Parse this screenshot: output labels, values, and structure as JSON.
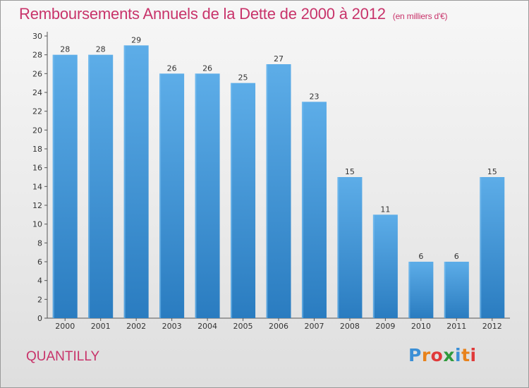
{
  "header": {
    "title": "Remboursements Annuels de la Dette de 2000 à 2012",
    "subtitle": "(en milliers d'€)"
  },
  "footer": {
    "commune": "QUANTILLY",
    "logo": {
      "letters": [
        "P",
        "r",
        "o",
        "x",
        "i",
        "t",
        "i"
      ],
      "colors": [
        "#3b8fd6",
        "#e8821c",
        "#e03a3a",
        "#2f9a3c",
        "#3b8fd6",
        "#e8821c",
        "#e03a3a"
      ]
    }
  },
  "colors": {
    "bar_light": "#5dade8",
    "bar_dark": "#2a7cc0",
    "axis": "#555555",
    "title": "#c8336a"
  },
  "chart_data": {
    "type": "bar",
    "title": "Remboursements Annuels de la Dette de 2000 à 2012",
    "subtitle": "(en milliers d'€)",
    "categories": [
      "2000",
      "2001",
      "2002",
      "2003",
      "2004",
      "2005",
      "2006",
      "2007",
      "2008",
      "2009",
      "2010",
      "2011",
      "2012"
    ],
    "values": [
      28,
      28,
      29,
      26,
      26,
      25,
      27,
      23,
      15,
      11,
      6,
      6,
      15
    ],
    "ylim": [
      0,
      30
    ],
    "yticks": [
      0,
      2,
      4,
      6,
      8,
      10,
      12,
      14,
      16,
      18,
      20,
      22,
      24,
      26,
      28,
      30
    ],
    "grid": false,
    "legend": "none",
    "data_labels": true
  }
}
